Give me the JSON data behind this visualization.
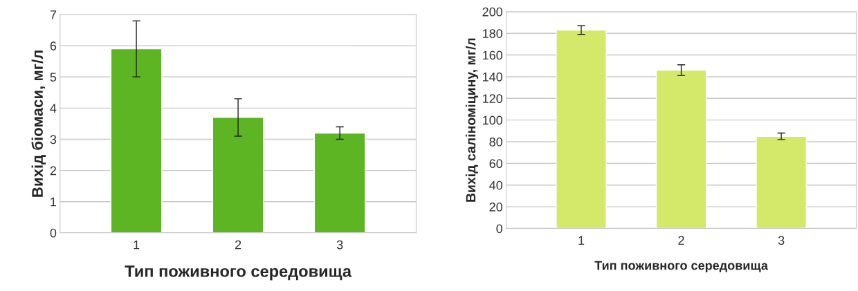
{
  "chart_data": [
    {
      "type": "bar",
      "xlabel": "Тип поживного середовища",
      "ylabel": "Вихід біомаси, мг/л",
      "categories": [
        "1",
        "2",
        "3"
      ],
      "values": [
        5.9,
        3.7,
        3.2
      ],
      "errors": [
        0.9,
        0.6,
        0.2
      ],
      "color": "#5db523",
      "ylim": [
        0,
        7
      ],
      "yticks": [
        0,
        1,
        2,
        3,
        4,
        5,
        6,
        7
      ],
      "grid": "y",
      "legend": false
    },
    {
      "type": "bar",
      "xlabel": "Тип поживного середовища",
      "ylabel": "Вихід саліноміцину, мг/л",
      "categories": [
        "1",
        "2",
        "3"
      ],
      "values": [
        183,
        146,
        85
      ],
      "errors": [
        4,
        5,
        3
      ],
      "color": "#d4e86a",
      "ylim": [
        0,
        200
      ],
      "yticks": [
        0,
        20,
        40,
        60,
        80,
        100,
        120,
        140,
        160,
        180,
        200
      ],
      "grid": "y",
      "legend": false
    }
  ]
}
